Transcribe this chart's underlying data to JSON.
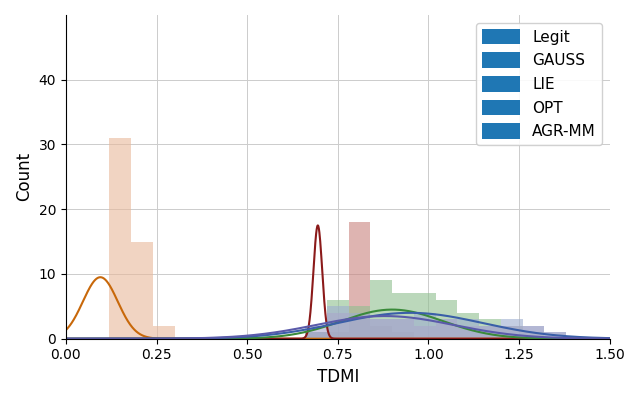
{
  "title": "",
  "xlabel": "TDMI",
  "ylabel": "Count",
  "xlim": [
    0.0,
    1.5
  ],
  "ylim": [
    0,
    50
  ],
  "yticks": [
    0,
    10,
    20,
    30,
    40
  ],
  "xticks": [
    0.0,
    0.25,
    0.5,
    0.75,
    1.0,
    1.25,
    1.5
  ],
  "legend_labels": [
    "Legit",
    "GAUSS",
    "LIE",
    "OPT",
    "AGR-MM"
  ],
  "legend_colors": [
    "#9daed0",
    "#e8b89a",
    "#8fbf8f",
    "#c9827e",
    "#a9a8cc"
  ],
  "line_colors": [
    "#3a5fa8",
    "#c8680a",
    "#3a8a3a",
    "#8b1a1a",
    "#5a5aaa"
  ],
  "n_bins": 25,
  "bin_range": [
    0.0,
    1.5
  ],
  "figsize": [
    6.4,
    4.01
  ],
  "dpi": 100,
  "background_color": "#ffffff",
  "grid_color": "#cccccc",
  "gauss_hist": [
    0,
    0,
    31,
    15,
    2,
    0,
    0,
    0,
    0,
    0,
    0,
    0,
    0,
    0,
    0,
    0,
    0,
    0,
    0,
    0,
    0,
    0,
    0,
    0,
    0
  ],
  "opt_hist": [
    0,
    0,
    0,
    0,
    0,
    0,
    0,
    0,
    0,
    0,
    0,
    1,
    1,
    18,
    2,
    1,
    0,
    0,
    0,
    0,
    0,
    0,
    0,
    0,
    0
  ],
  "lie_hist": [
    0,
    0,
    0,
    0,
    0,
    0,
    0,
    0,
    0,
    0,
    0,
    1,
    6,
    5,
    9,
    7,
    7,
    6,
    4,
    3,
    2,
    1,
    0,
    0,
    0
  ],
  "legit_hist": [
    0,
    0,
    0,
    0,
    0,
    0,
    0,
    0,
    0,
    0,
    0,
    1,
    5,
    4,
    3,
    3,
    4,
    3,
    3,
    2,
    3,
    2,
    1,
    0,
    0
  ],
  "agrmm_hist": [
    0,
    0,
    0,
    0,
    0,
    0,
    0,
    0,
    0,
    0,
    0,
    2,
    4,
    3,
    3,
    3,
    2,
    3,
    2,
    2,
    2,
    2,
    1,
    0,
    0
  ],
  "gauss_kde_mean": 0.095,
  "gauss_kde_std": 0.048,
  "gauss_kde_scale": 9.5,
  "opt_kde_mean": 0.695,
  "opt_kde_std": 0.012,
  "opt_kde_scale": 17.5,
  "legit_kde_mean": 0.95,
  "legit_kde_std": 0.2,
  "legit_kde_scale": 4.0,
  "lie_kde_mean": 0.9,
  "lie_kde_std": 0.14,
  "lie_kde_scale": 4.5,
  "agrmm_kde_mean": 0.88,
  "agrmm_kde_std": 0.19,
  "agrmm_kde_scale": 3.5
}
